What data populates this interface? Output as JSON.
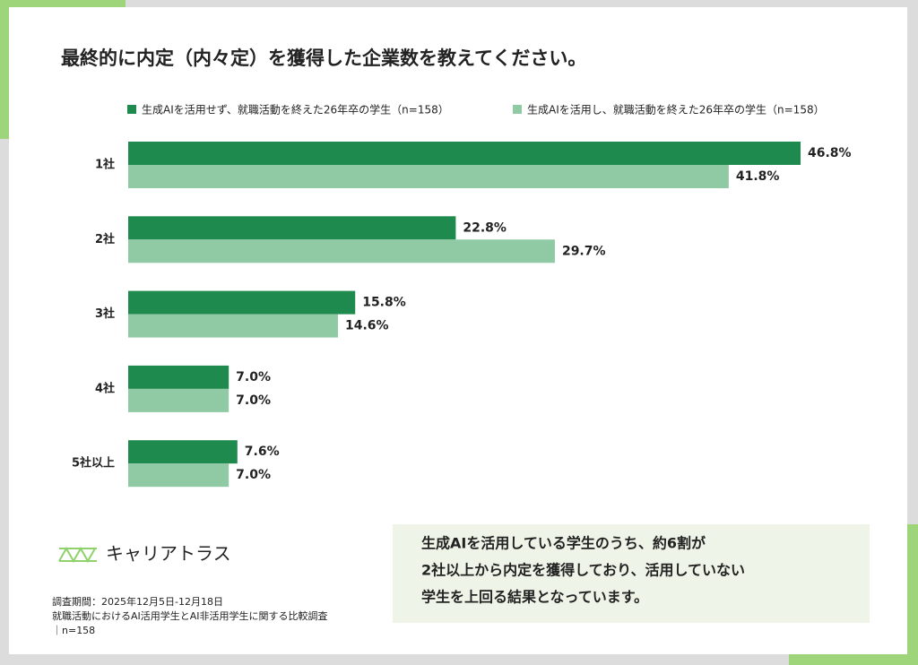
{
  "chart_data": {
    "type": "bar",
    "orientation": "horizontal",
    "title": "最終的に内定（内々定）を獲得した企業数を教えてください。",
    "categories": [
      "1社",
      "2社",
      "3社",
      "4社",
      "5社以上"
    ],
    "series": [
      {
        "name": "生成AIを活用せず、就職活動を終えた26年卒の学生（n=158）",
        "color": "#1f8a4d",
        "values": [
          46.8,
          22.8,
          15.8,
          7.0,
          7.6
        ],
        "value_labels": [
          "46.8%",
          "22.8%",
          "15.8%",
          "7.0%",
          "7.6%"
        ]
      },
      {
        "name": "生成AIを活用し、就職活動を終えた26年卒の学生（n=158）",
        "color": "#8fcaa5",
        "values": [
          41.8,
          29.7,
          14.6,
          7.0,
          7.0
        ],
        "value_labels": [
          "41.8%",
          "29.7%",
          "14.6%",
          "7.0%",
          "7.0%"
        ]
      }
    ]
  },
  "logo": "キャリアトラス",
  "callout": [
    "生成AIを活用している学生のうち、約6割が",
    "2社以上から内定を獲得しており、活用していない",
    "学生を上回る結果となっています。"
  ],
  "notes": [
    "調査期間：2025年12月5日-12月18日",
    "就職活動におけるAI活用学生とAI非活用学生に関する比較調査",
    "｜n=158"
  ]
}
